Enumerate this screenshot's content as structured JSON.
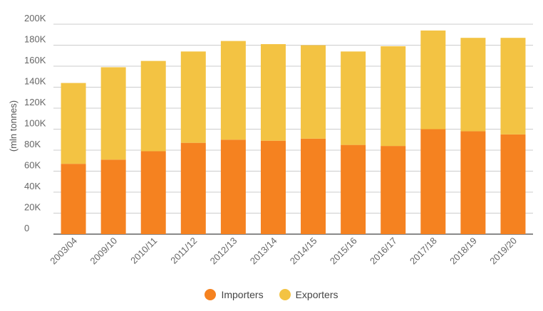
{
  "chart_data": {
    "type": "bar",
    "stacked": true,
    "ylabel": "(mln tonnes)",
    "ylim": [
      0,
      200000
    ],
    "yticks": [
      {
        "value": 0,
        "label": "0"
      },
      {
        "value": 20000,
        "label": "20K"
      },
      {
        "value": 40000,
        "label": "40K"
      },
      {
        "value": 60000,
        "label": "60K"
      },
      {
        "value": 80000,
        "label": "80K"
      },
      {
        "value": 100000,
        "label": "100K"
      },
      {
        "value": 120000,
        "label": "120K"
      },
      {
        "value": 140000,
        "label": "140K"
      },
      {
        "value": 160000,
        "label": "160K"
      },
      {
        "value": 180000,
        "label": "180K"
      },
      {
        "value": 200000,
        "label": "200K"
      }
    ],
    "grid": true,
    "legend_position": "bottom",
    "categories": [
      "2003/04",
      "2009/10",
      "2010/11",
      "2011/12",
      "2012/13",
      "2013/14",
      "2014/15",
      "2015/16",
      "2016/17",
      "2017/18",
      "2018/19",
      "2019/20"
    ],
    "series": [
      {
        "name": "Importers",
        "color": "#f58220",
        "values": [
          67000,
          71000,
          79000,
          87000,
          90000,
          89000,
          91000,
          85000,
          84000,
          100000,
          98000,
          95000
        ]
      },
      {
        "name": "Exporters",
        "color": "#f3c343",
        "values": [
          77000,
          88000,
          86000,
          87000,
          94000,
          92000,
          89000,
          89000,
          95000,
          94000,
          89000,
          92000
        ]
      }
    ]
  }
}
